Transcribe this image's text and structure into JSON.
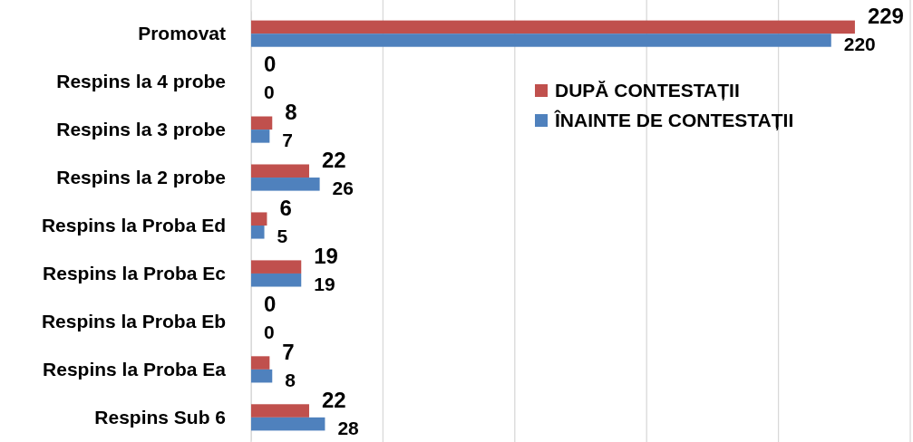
{
  "chart_data": {
    "type": "bar",
    "orientation": "horizontal",
    "categories": [
      "Promovat",
      "Respins la 4 probe",
      "Respins la 3 probe",
      "Respins la 2 probe",
      "Respins la Proba Ed",
      "Respins la Proba Ec",
      "Respins la Proba Eb",
      "Respins la Proba Ea",
      "Respins Sub 6"
    ],
    "series": [
      {
        "name": "DUPĂ CONTESTAȚII",
        "color": "#c0504d",
        "values": [
          229,
          0,
          8,
          22,
          6,
          19,
          0,
          7,
          22
        ]
      },
      {
        "name": "ÎNAINTE DE CONTESTAȚII",
        "color": "#4f81bd",
        "values": [
          220,
          0,
          7,
          26,
          5,
          19,
          0,
          8,
          28
        ]
      }
    ],
    "xlim": [
      0,
      250
    ],
    "xticks": [
      {
        "value": 0,
        "label": null
      },
      {
        "value": 50,
        "label": null
      },
      {
        "value": 100,
        "label": null
      },
      {
        "value": 150,
        "label": null
      },
      {
        "value": 200,
        "label": null
      },
      {
        "value": 250,
        "label": null
      }
    ],
    "tick_labels": "y",
    "grid": "x",
    "data_labels": true,
    "legend": "right"
  }
}
